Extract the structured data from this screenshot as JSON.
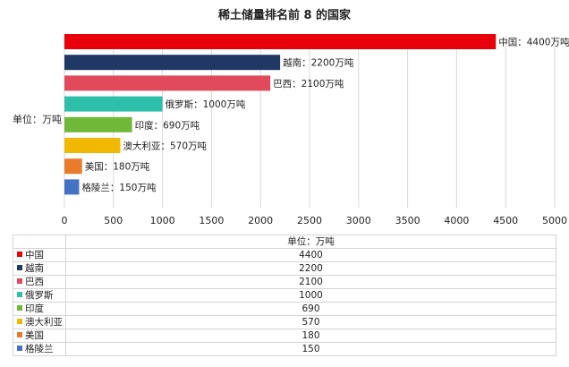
{
  "chart_data": {
    "type": "bar",
    "orientation": "horizontal",
    "title": "稀土储量排名前 8 的国家",
    "ylabel": "单位：万吨",
    "unit_header": "单位：万吨",
    "xlim": [
      0,
      5000
    ],
    "xticks": [
      0,
      500,
      1000,
      1500,
      2000,
      2500,
      3000,
      3500,
      4000,
      4500,
      5000
    ],
    "grid": true,
    "categories": [
      "中国",
      "越南",
      "巴西",
      "俄罗斯",
      "印度",
      "澳大利亚",
      "美国",
      "格陵兰"
    ],
    "values": [
      4400,
      2200,
      2100,
      1000,
      690,
      570,
      180,
      150
    ],
    "data_labels": [
      "中国：4400万吨",
      "越南：2200万吨",
      "巴西：2100万吨",
      "俄罗斯：1000万吨",
      "印度：690万吨",
      "澳大利亚：570万吨",
      "美国：180万吨",
      "格陵兰：150万吨"
    ],
    "colors": [
      "#e8000b",
      "#203864",
      "#e04a5a",
      "#2ebfaa",
      "#70b838",
      "#f0b800",
      "#e87c2c",
      "#4472c4"
    ]
  }
}
